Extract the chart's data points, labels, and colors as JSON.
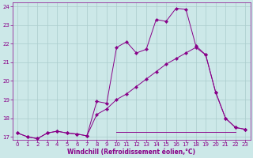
{
  "xlabel": "Windchill (Refroidissement éolien,°C)",
  "bg_color": "#cce8e8",
  "grid_color": "#aacccc",
  "line_color": "#880088",
  "xlim_min": -0.5,
  "xlim_max": 23.5,
  "ylim_min": 16.85,
  "ylim_max": 24.2,
  "yticks": [
    17,
    18,
    19,
    20,
    21,
    22,
    23,
    24
  ],
  "xticks": [
    0,
    1,
    2,
    3,
    4,
    5,
    6,
    7,
    8,
    9,
    10,
    11,
    12,
    13,
    14,
    15,
    16,
    17,
    18,
    19,
    20,
    21,
    22,
    23
  ],
  "line1_x": [
    0,
    1,
    2,
    3,
    4,
    5,
    6,
    7,
    8,
    9,
    10,
    11,
    12,
    13,
    14,
    15,
    16,
    17,
    18,
    19,
    20,
    21,
    22,
    23
  ],
  "line1_y": [
    17.2,
    17.0,
    16.9,
    17.2,
    17.3,
    17.2,
    17.15,
    17.05,
    18.9,
    18.8,
    21.8,
    22.1,
    21.5,
    21.7,
    23.3,
    23.2,
    23.9,
    23.85,
    21.9,
    21.4,
    19.4,
    18.0,
    17.5,
    17.4
  ],
  "line2_x": [
    0,
    1,
    2,
    3,
    4,
    5,
    6,
    7,
    8,
    9,
    10,
    11,
    12,
    13,
    14,
    15,
    16,
    17,
    18,
    19,
    20,
    21,
    22,
    23
  ],
  "line2_y": [
    17.2,
    17.0,
    16.9,
    17.2,
    17.3,
    17.2,
    17.15,
    17.05,
    18.2,
    18.5,
    19.0,
    19.3,
    19.7,
    20.1,
    20.5,
    20.9,
    21.2,
    21.5,
    21.8,
    21.4,
    19.4,
    18.0,
    17.5,
    17.4
  ],
  "line3_x": [
    10,
    22
  ],
  "line3_y": [
    17.25,
    17.25
  ],
  "marker_size": 2.2,
  "linewidth": 0.7,
  "tick_fontsize": 5.0,
  "xlabel_fontsize": 5.5
}
